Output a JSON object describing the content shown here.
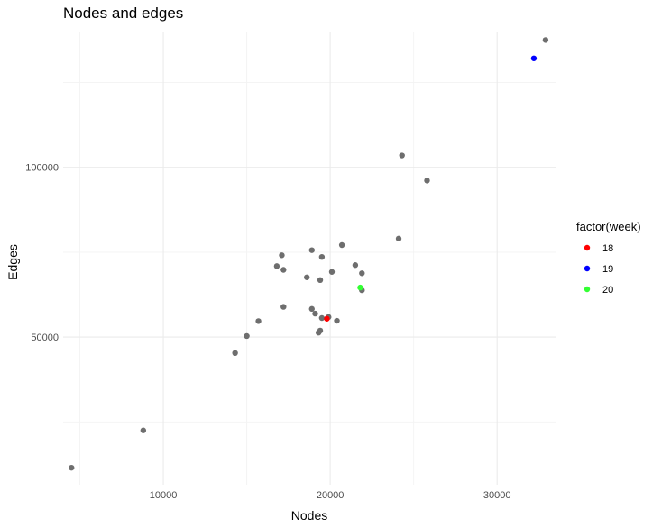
{
  "chart_data": {
    "type": "scatter",
    "title": "Nodes and edges",
    "xlabel": "Nodes",
    "ylabel": "Edges",
    "xlim": [
      4000,
      33500
    ],
    "ylim": [
      6500,
      140000
    ],
    "x_ticks": [
      10000,
      20000,
      30000
    ],
    "y_ticks": [
      50000,
      100000
    ],
    "x_tick_labels": [
      "10000",
      "20000",
      "30000"
    ],
    "y_tick_labels": [
      "50000",
      "100000"
    ],
    "grid": true,
    "default_point_color": "#6e6e6e",
    "legend": {
      "title": "factor(week)",
      "placement": "right",
      "entries": [
        {
          "label": "18",
          "color": "#ff0000"
        },
        {
          "label": "19",
          "color": "#0000ff"
        },
        {
          "label": "20",
          "color": "#33ff33"
        }
      ]
    },
    "points": [
      {
        "x": 4500,
        "y": 11500,
        "group": null
      },
      {
        "x": 8800,
        "y": 22500,
        "group": null
      },
      {
        "x": 14300,
        "y": 45300,
        "group": null
      },
      {
        "x": 15000,
        "y": 50300,
        "group": null
      },
      {
        "x": 15700,
        "y": 54700,
        "group": null
      },
      {
        "x": 16800,
        "y": 70900,
        "group": null
      },
      {
        "x": 17100,
        "y": 74100,
        "group": null
      },
      {
        "x": 17200,
        "y": 69800,
        "group": null
      },
      {
        "x": 17200,
        "y": 58900,
        "group": null
      },
      {
        "x": 18600,
        "y": 67600,
        "group": null
      },
      {
        "x": 18900,
        "y": 75600,
        "group": null
      },
      {
        "x": 18900,
        "y": 58300,
        "group": null
      },
      {
        "x": 19100,
        "y": 56900,
        "group": null
      },
      {
        "x": 19300,
        "y": 51300,
        "group": null
      },
      {
        "x": 19400,
        "y": 51900,
        "group": null
      },
      {
        "x": 19400,
        "y": 66800,
        "group": null
      },
      {
        "x": 19500,
        "y": 55600,
        "group": null
      },
      {
        "x": 19500,
        "y": 73600,
        "group": null
      },
      {
        "x": 19900,
        "y": 55900,
        "group": null
      },
      {
        "x": 20100,
        "y": 69200,
        "group": null
      },
      {
        "x": 20400,
        "y": 54800,
        "group": null
      },
      {
        "x": 20700,
        "y": 77100,
        "group": null
      },
      {
        "x": 21500,
        "y": 71200,
        "group": null
      },
      {
        "x": 21900,
        "y": 68800,
        "group": null
      },
      {
        "x": 21900,
        "y": 63800,
        "group": null
      },
      {
        "x": 24100,
        "y": 79000,
        "group": null
      },
      {
        "x": 24300,
        "y": 103500,
        "group": null
      },
      {
        "x": 25800,
        "y": 96100,
        "group": null
      },
      {
        "x": 32900,
        "y": 137500,
        "group": null
      },
      {
        "x": 19800,
        "y": 55400,
        "group": "18"
      },
      {
        "x": 32200,
        "y": 132100,
        "group": "19"
      },
      {
        "x": 21800,
        "y": 64600,
        "group": "20"
      }
    ]
  }
}
